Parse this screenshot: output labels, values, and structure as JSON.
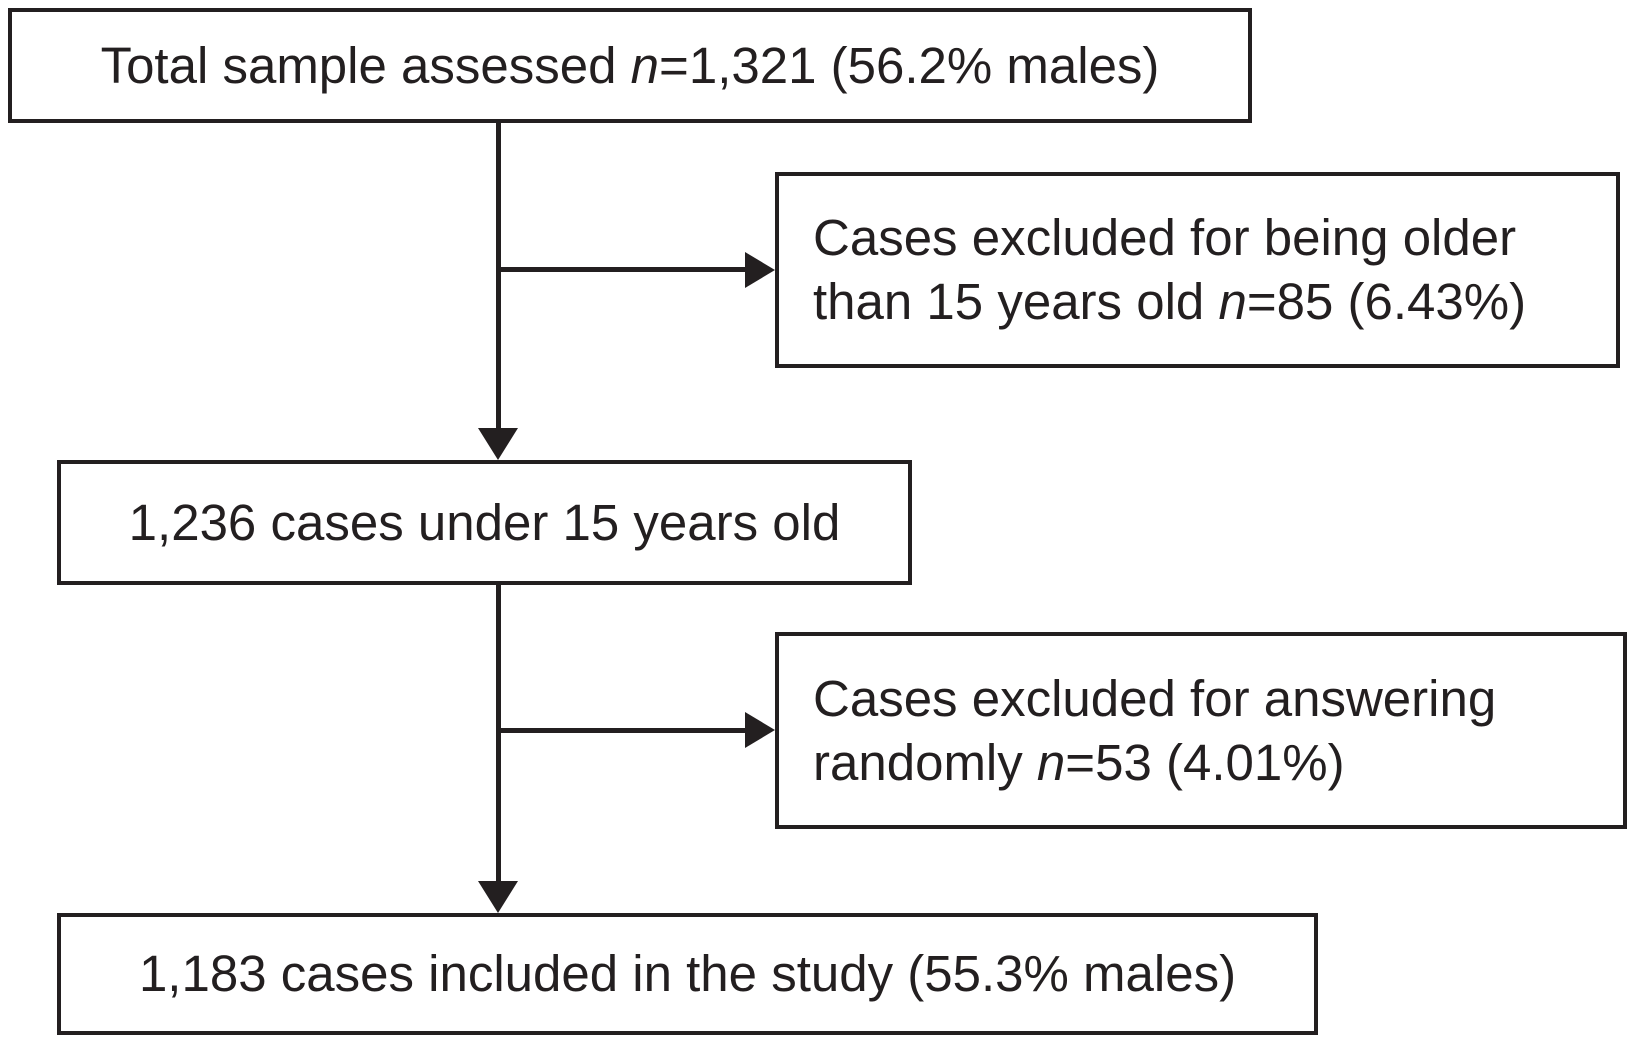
{
  "figure": {
    "kind": "study-flow-diagram",
    "background_color": "#ffffff",
    "ink_color": "#231f20"
  },
  "nodes": {
    "total": {
      "pre": "Total sample assessed ",
      "n": "n",
      "post": "=1,321 (56.2% males)"
    },
    "excluded_age": {
      "line1": "Cases excluded for being older",
      "line2_pre": "than 15 years old ",
      "n": "n",
      "line2_post": "=85 (6.43%)"
    },
    "under_15": {
      "text": "1,236 cases under 15 years old"
    },
    "excluded_random": {
      "line1": "Cases excluded for answering",
      "line2_pre": "randomly ",
      "n": "n",
      "line2_post": "=53 (4.01%)"
    },
    "included": {
      "text": "1,183 cases included in the study (55.3% males)"
    }
  }
}
